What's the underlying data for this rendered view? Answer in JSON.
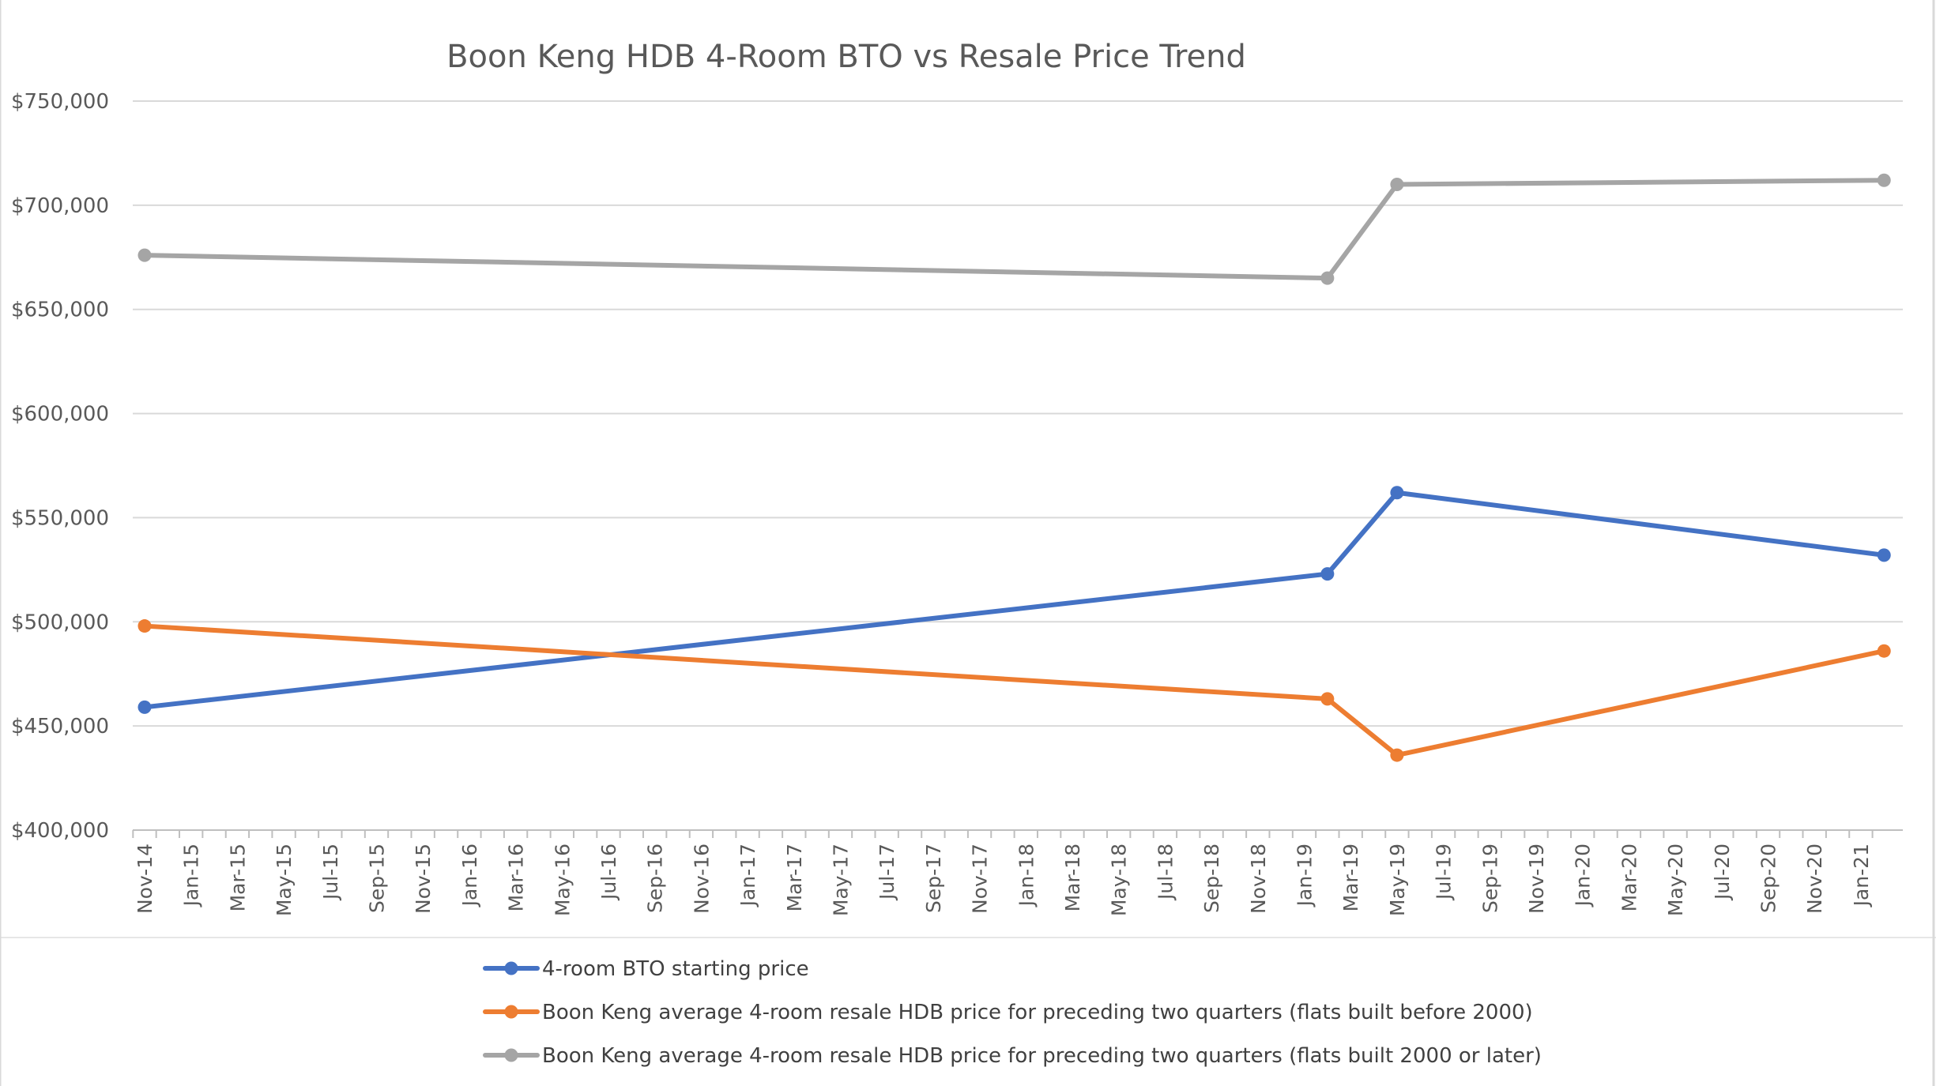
{
  "chart_data": {
    "type": "line",
    "title": "Boon Keng HDB 4-Room BTO vs Resale Price Trend",
    "xlabel": "",
    "ylabel": "",
    "ylim": [
      400000,
      750000
    ],
    "yticks": [
      "$400,000",
      "$450,000",
      "$500,000",
      "$550,000",
      "$600,000",
      "$650,000",
      "$700,000",
      "$750,000"
    ],
    "xticks": [
      "Nov-14",
      "Jan-15",
      "Mar-15",
      "May-15",
      "Jul-15",
      "Sep-15",
      "Nov-15",
      "Jan-16",
      "Mar-16",
      "May-16",
      "Jul-16",
      "Sep-16",
      "Nov-16",
      "Jan-17",
      "Mar-17",
      "May-17",
      "Jul-17",
      "Sep-17",
      "Nov-17",
      "Jan-18",
      "Mar-18",
      "May-18",
      "Jul-18",
      "Sep-18",
      "Nov-18",
      "Jan-19",
      "Mar-19",
      "May-19",
      "Jul-19",
      "Sep-19",
      "Nov-19",
      "Jan-20",
      "Mar-20",
      "May-20",
      "Jul-20",
      "Sep-20",
      "Nov-20",
      "Jan-21"
    ],
    "x": [
      "Nov-14",
      "Feb-19",
      "May-19",
      "Feb-21"
    ],
    "grid": true,
    "legend_position": "bottom",
    "series": [
      {
        "name": "4-room BTO starting price",
        "color": "#4472C4",
        "values": [
          459000,
          523000,
          562000,
          532000
        ]
      },
      {
        "name": "Boon Keng average 4-room resale HDB price for preceding two quarters (flats built before 2000)",
        "color": "#ED7D31",
        "values": [
          498000,
          463000,
          436000,
          486000
        ]
      },
      {
        "name": "Boon Keng average 4-room resale HDB price for preceding two quarters (flats built 2000 or later)",
        "color": "#A5A5A5",
        "values": [
          676000,
          665000,
          710000,
          712000
        ]
      }
    ]
  }
}
